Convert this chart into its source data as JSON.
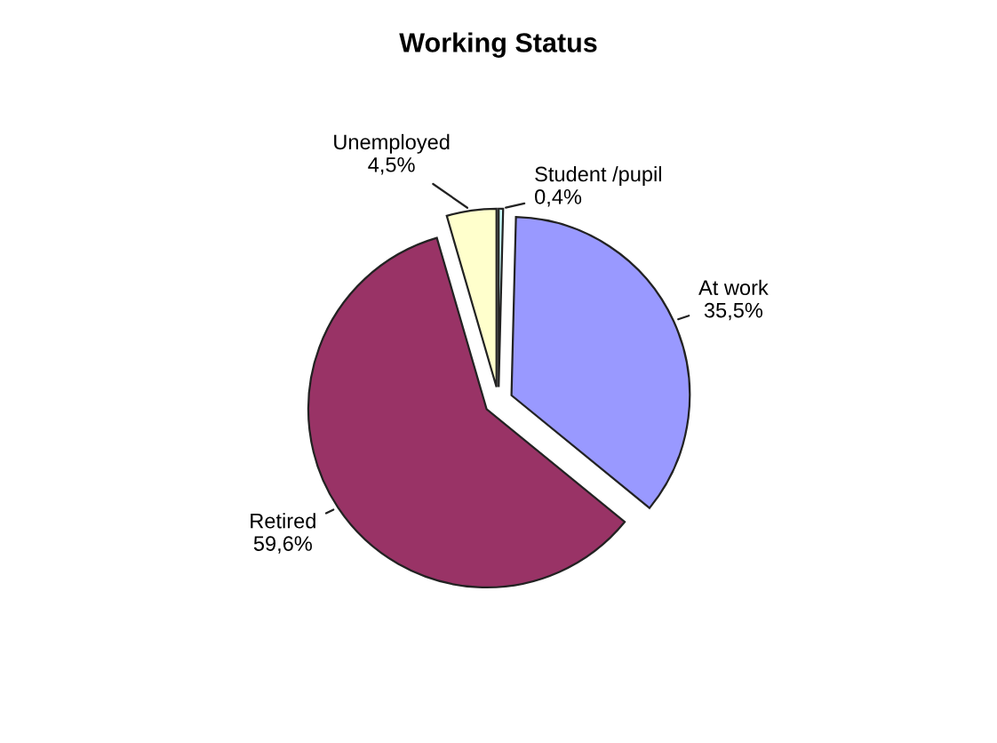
{
  "chart_data": {
    "type": "pie",
    "title": "Working Status",
    "categories": [
      "Student /pupil",
      "At work",
      "Retired",
      "Unemployed"
    ],
    "values": [
      0.4,
      35.5,
      59.6,
      4.5
    ],
    "value_labels": [
      "0,4%",
      "35,5%",
      "59,6%",
      "4,5%"
    ],
    "colors": [
      "#ccffff",
      "#9999ff",
      "#993366",
      "#ffffcc"
    ],
    "legend": false
  }
}
